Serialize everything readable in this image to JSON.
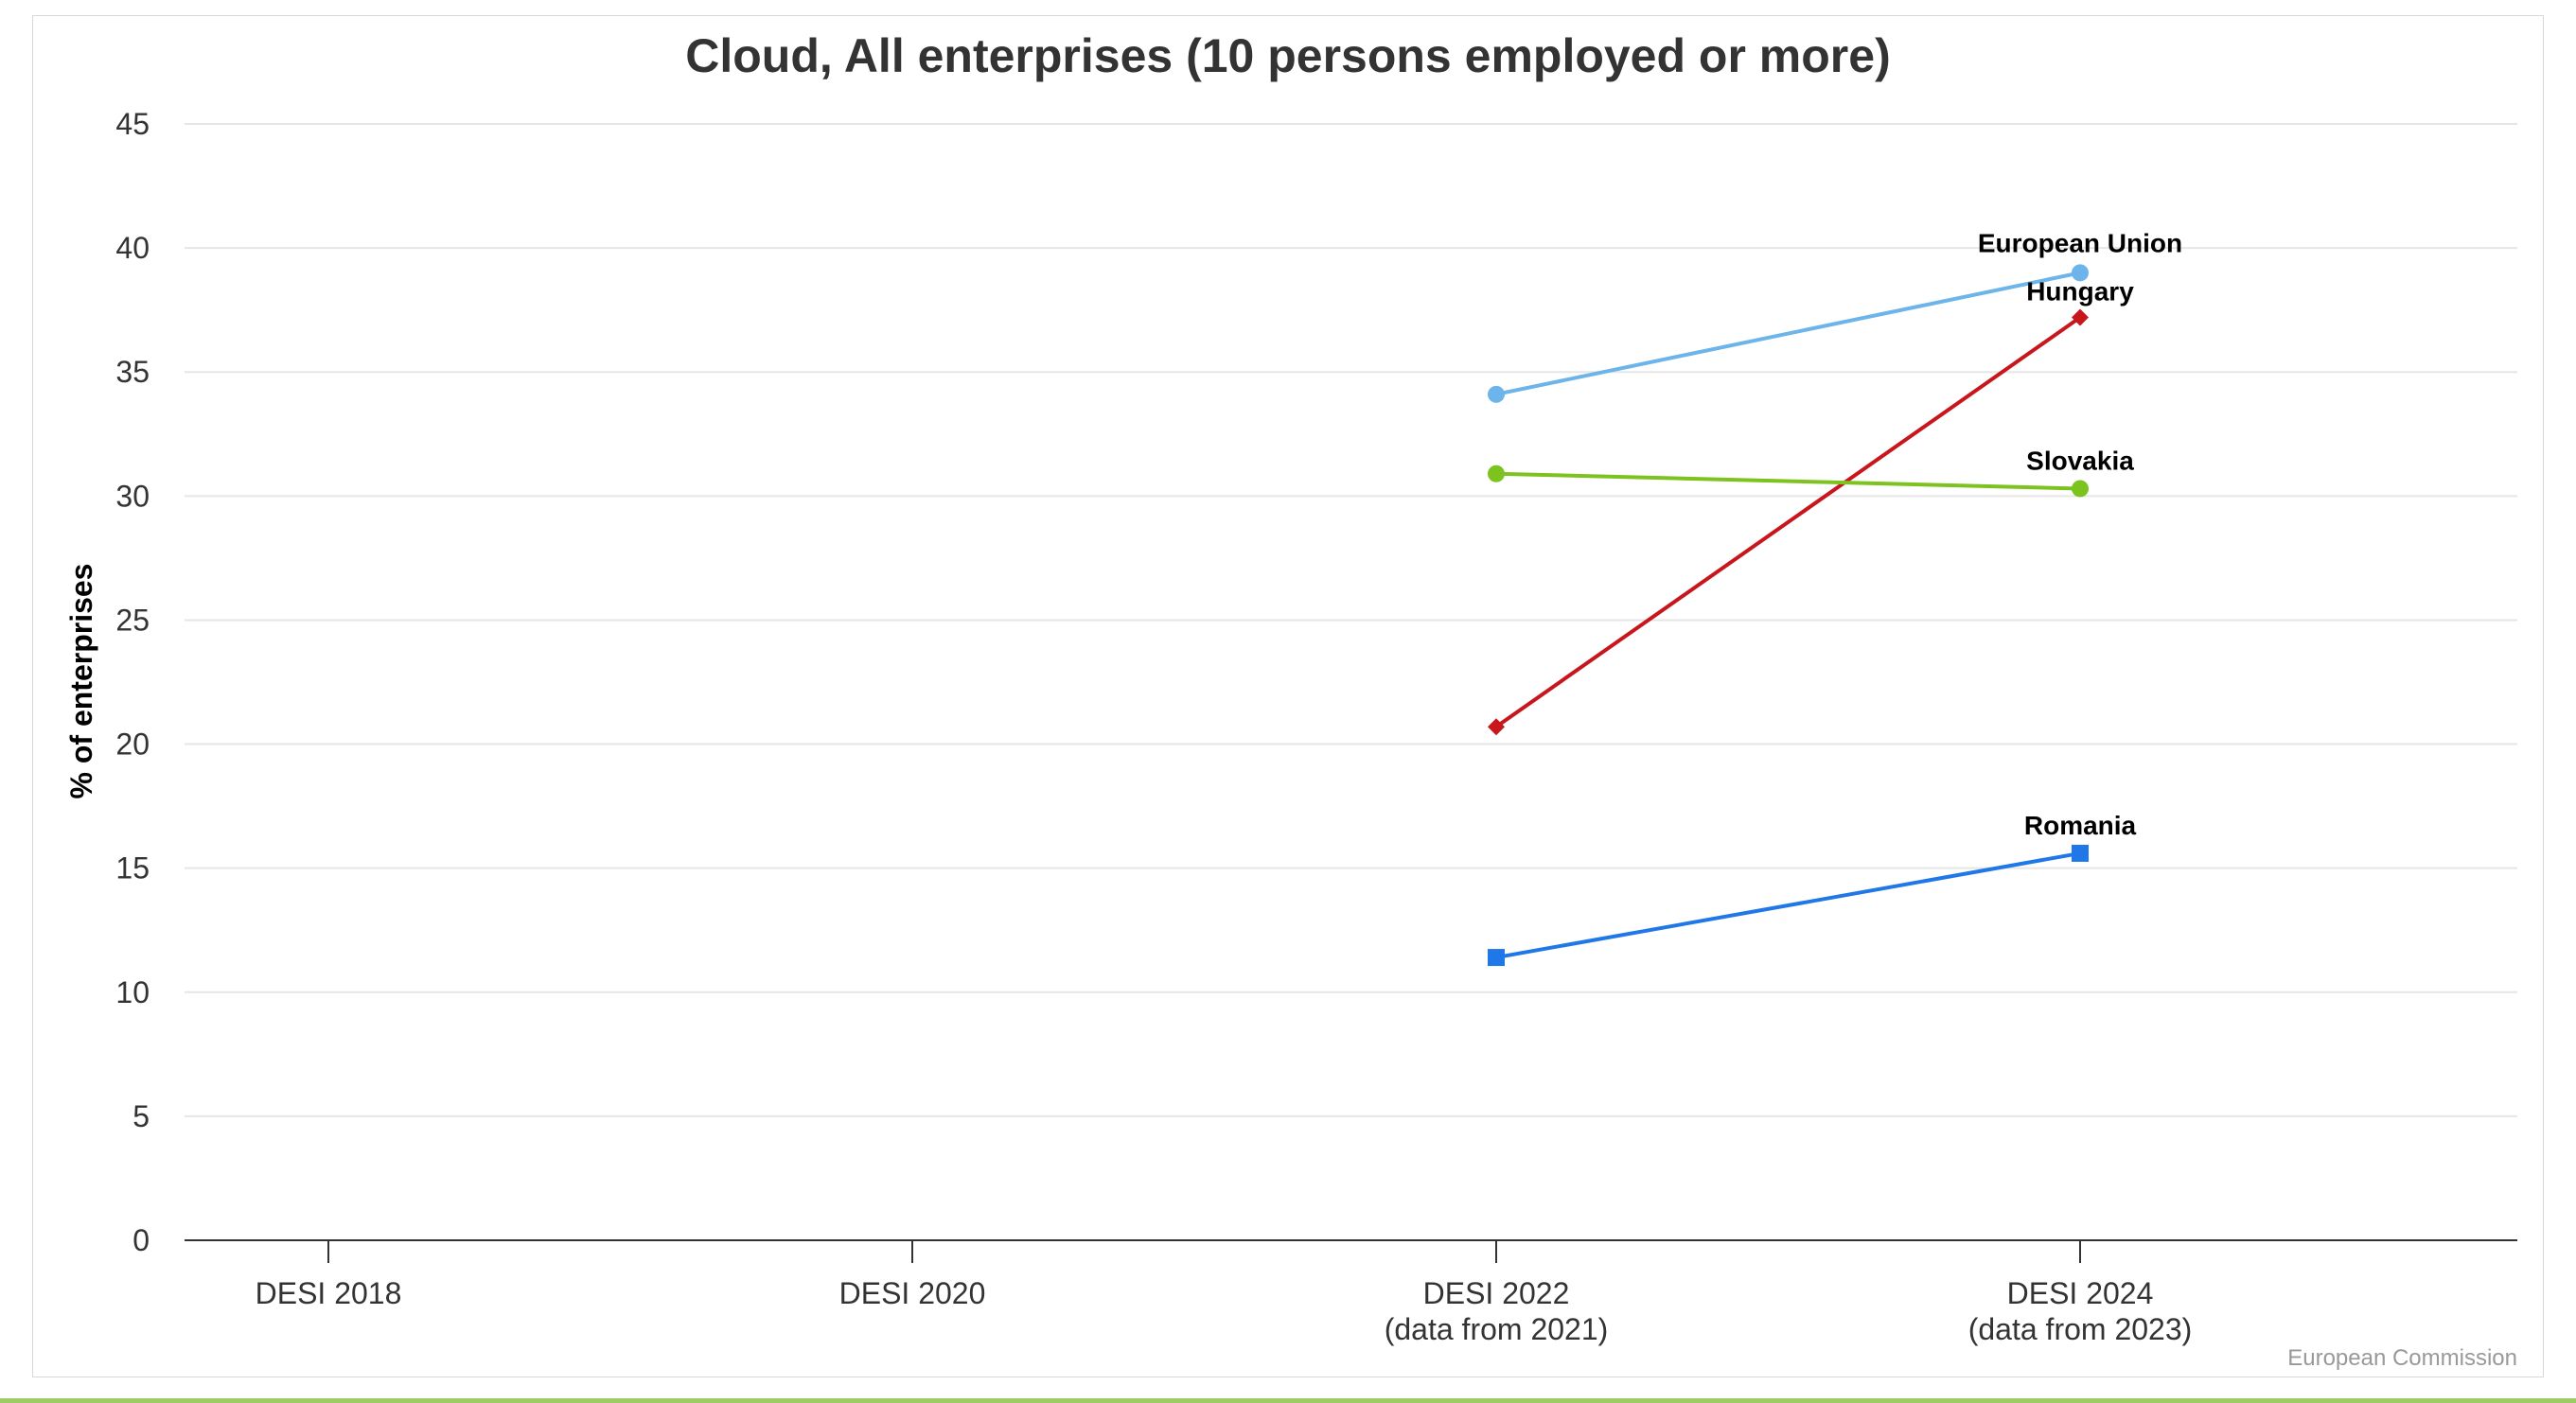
{
  "chart_data": {
    "type": "line",
    "title": "Cloud, All enterprises (10 persons employed or more)",
    "xlabel": "",
    "ylabel": "% of enterprises",
    "ylim": [
      0,
      45
    ],
    "yticks": [
      "0",
      "5",
      "10",
      "15",
      "20",
      "25",
      "30",
      "35",
      "40",
      "45"
    ],
    "categories": [
      [
        "DESI 2018"
      ],
      [
        "DESI 2020"
      ],
      [
        "DESI 2022",
        "(data from 2021)"
      ],
      [
        "DESI 2024",
        "(data from 2023)"
      ]
    ],
    "grid": true,
    "series": [
      {
        "name": "European Union",
        "color": "#6cb4ea",
        "marker": "circle",
        "values": [
          null,
          null,
          34.1,
          39.0
        ]
      },
      {
        "name": "Hungary",
        "color": "#c8161d",
        "marker": "diamond",
        "values": [
          null,
          null,
          20.7,
          37.2
        ]
      },
      {
        "name": "Slovakia",
        "color": "#7cc320",
        "marker": "circle",
        "values": [
          null,
          null,
          30.9,
          30.3
        ]
      },
      {
        "name": "Romania",
        "color": "#1f77e8",
        "marker": "square",
        "values": [
          null,
          null,
          11.4,
          15.6
        ]
      }
    ]
  },
  "credit": "European Commission"
}
